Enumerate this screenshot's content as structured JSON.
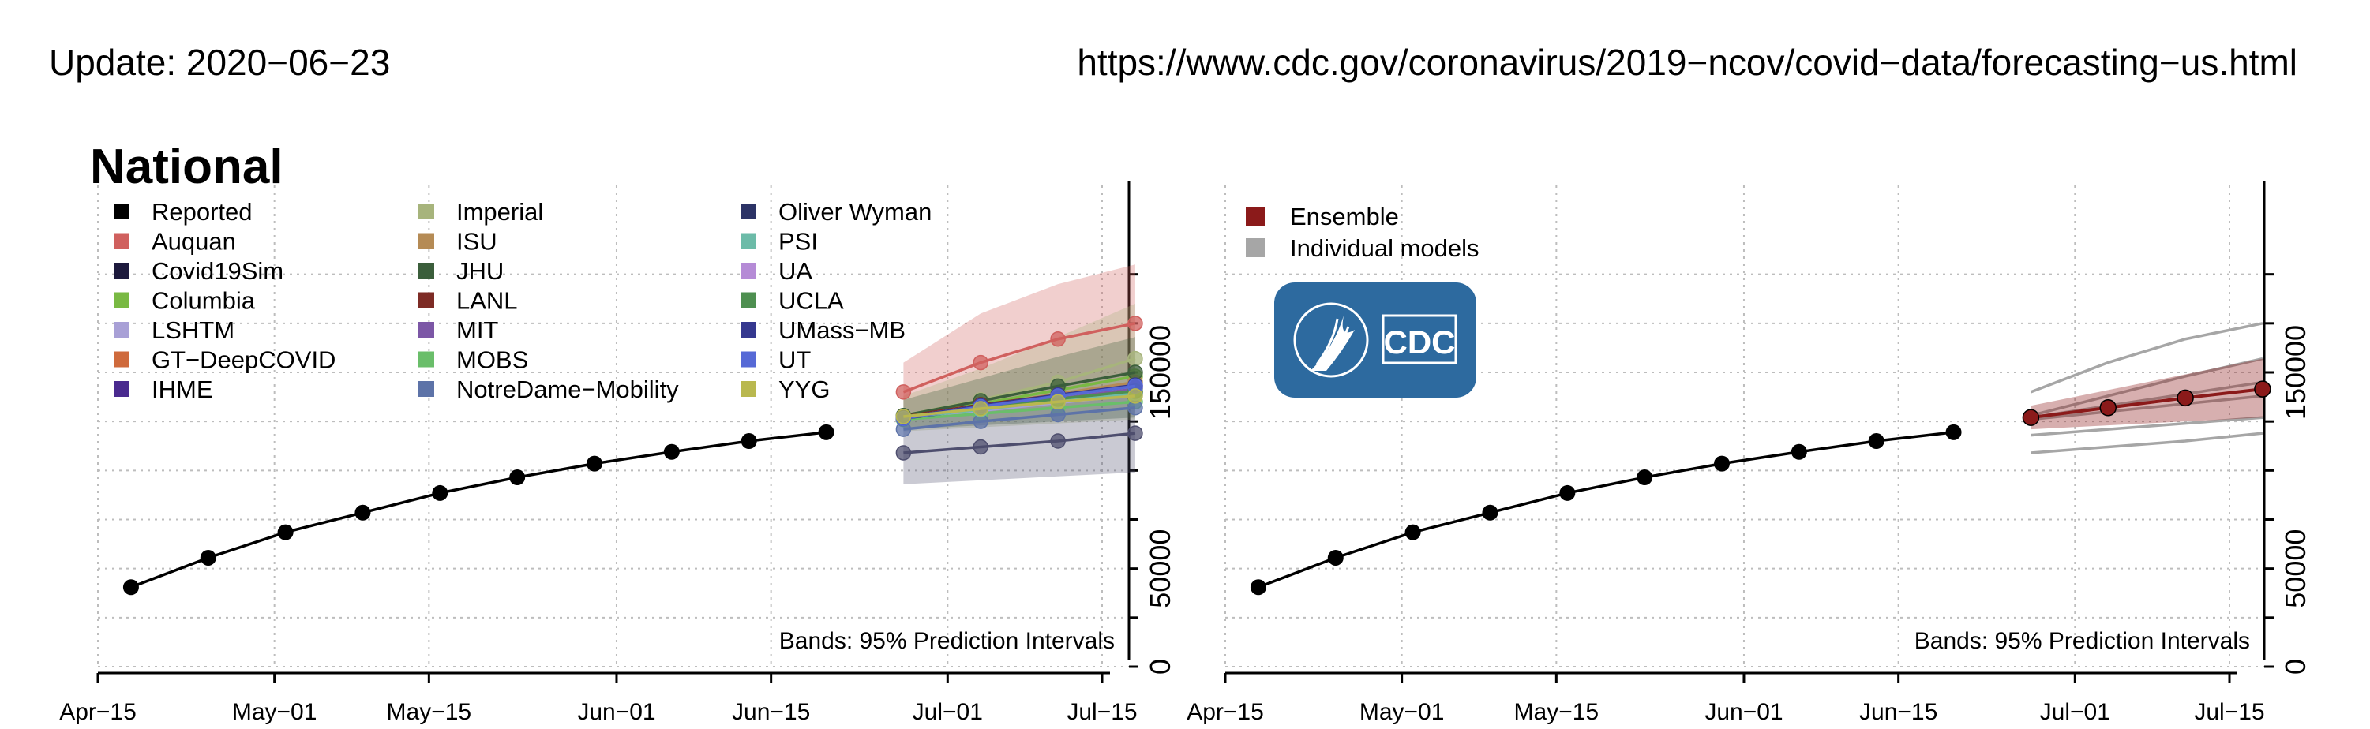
{
  "header": {
    "update": "Update: 2020−06−23",
    "url": "https://www.cdc.gov/coronavirus/2019−ncov/covid−data/forecasting−us.html"
  },
  "colors": {
    "reported": "#000000",
    "ensemble": "#8b1a1a",
    "individual": "#a6a6a6",
    "cdc_logo": "#2d6a9f",
    "grid": "#bdbdbd"
  },
  "logo": {
    "text": "CDC",
    "icon": "hhs-eagle-icon"
  },
  "chart_data": [
    {
      "type": "line",
      "title": "National",
      "ylabel": "",
      "ylim": [
        0,
        200000
      ],
      "yticks": [
        0,
        50000,
        150000
      ],
      "ytick_labels": [
        "0",
        "50000",
        "150000"
      ],
      "xlim": [
        "2020-04-15",
        "2020-07-20"
      ],
      "xticks": [
        "2020-04-15",
        "2020-05-01",
        "2020-05-15",
        "2020-06-01",
        "2020-06-15",
        "2020-07-01",
        "2020-07-15"
      ],
      "xtick_labels": [
        "Apr−15",
        "May−01",
        "May−15",
        "Jun−01",
        "Jun−15",
        "Jul−01",
        "Jul−15"
      ],
      "grid": true,
      "legend_position": "top-left",
      "note": "Bands: 95% Prediction Intervals",
      "reported": {
        "name": "Reported",
        "x": [
          "2020-04-18",
          "2020-04-25",
          "2020-05-02",
          "2020-05-09",
          "2020-05-16",
          "2020-05-23",
          "2020-05-30",
          "2020-06-06",
          "2020-06-13",
          "2020-06-20"
        ],
        "y": [
          40500,
          55500,
          68500,
          78500,
          88500,
          96500,
          103500,
          109500,
          115000,
          119500
        ]
      },
      "forecast_x": [
        "2020-06-27",
        "2020-07-04",
        "2020-07-11",
        "2020-07-18"
      ],
      "series": [
        {
          "name": "Reported",
          "color": "#000000"
        },
        {
          "name": "Auquan",
          "color": "#d0605e",
          "values": [
            140000,
            155000,
            167000,
            175000
          ],
          "lower": [
            125000,
            130000,
            135000,
            138000
          ],
          "upper": [
            155000,
            180000,
            195000,
            205000
          ]
        },
        {
          "name": "Covid19Sim",
          "color": "#1d1a3d",
          "values": [
            127000,
            131000,
            135000,
            139000
          ]
        },
        {
          "name": "Columbia",
          "color": "#79b943",
          "values": [
            127500,
            134000,
            141000,
            148000
          ]
        },
        {
          "name": "LSHTM",
          "color": "#a8a0d6",
          "values": [
            126500,
            130500,
            134500,
            138500
          ]
        },
        {
          "name": "GT−DeepCOVID",
          "color": "#cf6a3c",
          "values": [
            127000,
            132000,
            136500,
            140000
          ]
        },
        {
          "name": "IHME",
          "color": "#4a2a8f",
          "values": [
            126500,
            132000,
            137000,
            142000
          ]
        },
        {
          "name": "Imperial",
          "color": "#a7b47c",
          "values": [
            128000,
            136000,
            145000,
            157000
          ],
          "lower": [
            120000,
            122000,
            124000,
            126000
          ],
          "upper": [
            138000,
            152000,
            168000,
            185000
          ]
        },
        {
          "name": "ISU",
          "color": "#b58b55",
          "values": [
            127000,
            133000,
            139000,
            145000
          ]
        },
        {
          "name": "JHU",
          "color": "#3b5e3b",
          "values": [
            128000,
            135500,
            143000,
            150000
          ],
          "lower": [
            121000,
            123000,
            125000,
            127000
          ],
          "upper": [
            136000,
            147000,
            158000,
            168000
          ]
        },
        {
          "name": "LANL",
          "color": "#7d2b25",
          "values": [
            127500,
            133500,
            138500,
            143000
          ]
        },
        {
          "name": "MIT",
          "color": "#7c57a6",
          "values": [
            127000,
            132500,
            137500,
            142000
          ]
        },
        {
          "name": "MOBS",
          "color": "#6abe6a",
          "values": [
            126000,
            129000,
            132000,
            135000
          ]
        },
        {
          "name": "NotreDame−Mobility",
          "color": "#5d73a8",
          "values": [
            121000,
            125000,
            128500,
            132000
          ]
        },
        {
          "name": "Oliver Wyman",
          "color": "#2c3366",
          "values": [
            126500,
            131500,
            136000,
            140000
          ]
        },
        {
          "name": "PSI",
          "color": "#6cbba8",
          "values": [
            127000,
            131000,
            135500,
            139500
          ]
        },
        {
          "name": "UA",
          "color": "#b58bd6",
          "values": [
            127000,
            133000,
            138000,
            143000
          ]
        },
        {
          "name": "UCLA",
          "color": "#4e8f50",
          "values": [
            127500,
            132000,
            136500,
            140500
          ]
        },
        {
          "name": "UMass−MB",
          "color": "#35388f",
          "values": [
            127000,
            133000,
            138500,
            143500
          ]
        },
        {
          "name": "UT",
          "color": "#5669d6",
          "values": [
            126500,
            132500,
            138000,
            143000
          ]
        },
        {
          "name": "YYG",
          "color": "#b9b84f",
          "values": [
            127500,
            131500,
            135000,
            138000
          ]
        },
        {
          "name": "",
          "color": "#4e4e6e",
          "values": [
            109000,
            112000,
            115000,
            119000
          ],
          "lower": [
            93000,
            95000,
            97000,
            99000
          ],
          "upper": [
            125000,
            130000,
            135000,
            140000
          ]
        }
      ]
    },
    {
      "type": "line",
      "title": "",
      "ylim": [
        0,
        200000
      ],
      "yticks": [
        0,
        50000,
        150000
      ],
      "ytick_labels": [
        "0",
        "50000",
        "150000"
      ],
      "xlim": [
        "2020-04-15",
        "2020-07-20"
      ],
      "xticks": [
        "2020-04-15",
        "2020-05-01",
        "2020-05-15",
        "2020-06-01",
        "2020-06-15",
        "2020-07-01",
        "2020-07-15"
      ],
      "xtick_labels": [
        "Apr−15",
        "May−01",
        "May−15",
        "Jun−01",
        "Jun−15",
        "Jul−01",
        "Jul−15"
      ],
      "grid": true,
      "legend_position": "top-left",
      "note": "Bands: 95% Prediction Intervals",
      "legend": [
        {
          "name": "Ensemble",
          "color": "#8b1a1a"
        },
        {
          "name": "Individual models",
          "color": "#a6a6a6"
        }
      ],
      "reported": {
        "name": "Reported",
        "x": [
          "2020-04-18",
          "2020-04-25",
          "2020-05-02",
          "2020-05-09",
          "2020-05-16",
          "2020-05-23",
          "2020-05-30",
          "2020-06-06",
          "2020-06-13",
          "2020-06-20"
        ],
        "y": [
          40500,
          55500,
          68500,
          78500,
          88500,
          96500,
          103500,
          109500,
          115000,
          119500
        ]
      },
      "forecast_x": [
        "2020-06-27",
        "2020-07-04",
        "2020-07-11",
        "2020-07-18"
      ],
      "ensemble": {
        "name": "Ensemble",
        "values": [
          127000,
          132000,
          137000,
          141500
        ],
        "lower": [
          121000,
          123000,
          125000,
          127000
        ],
        "upper": [
          133000,
          141000,
          149000,
          157000
        ]
      },
      "individual_models": [
        [
          140000,
          155000,
          167000,
          175000
        ],
        [
          128000,
          138000,
          148000,
          157000
        ],
        [
          127000,
          133000,
          139000,
          145000
        ],
        [
          126000,
          130000,
          134000,
          138000
        ],
        [
          118000,
          121000,
          124000,
          127000
        ],
        [
          109000,
          112000,
          115000,
          119000
        ]
      ]
    }
  ]
}
